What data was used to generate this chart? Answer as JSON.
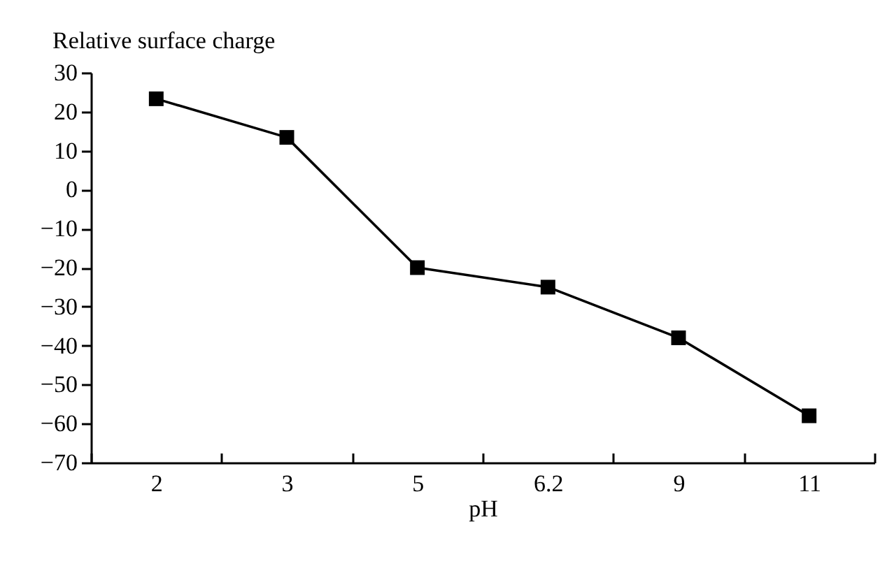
{
  "chart_data": {
    "type": "line",
    "xlabel": "pH",
    "ylabel": "Relative surface charge",
    "categories": [
      "2",
      "3",
      "5",
      "6.2",
      "9",
      "11"
    ],
    "series": [
      {
        "color": "#000000",
        "values": [
          23.3,
          13.4,
          -20,
          -25,
          -38,
          -58
        ]
      }
    ],
    "ylim": [
      -70,
      30
    ],
    "yticks": [
      30,
      20,
      10,
      0,
      {
        "value": -10,
        "label": "−10"
      },
      {
        "value": -20,
        "label": "−20"
      },
      {
        "value": -30,
        "label": "−30"
      },
      {
        "value": -40,
        "label": "−40"
      },
      {
        "value": -50,
        "label": "−50"
      },
      {
        "value": -60,
        "label": "−60"
      },
      {
        "value": -70,
        "label": "−70"
      }
    ],
    "grid": false,
    "marker": "square",
    "line_style": "solid"
  }
}
